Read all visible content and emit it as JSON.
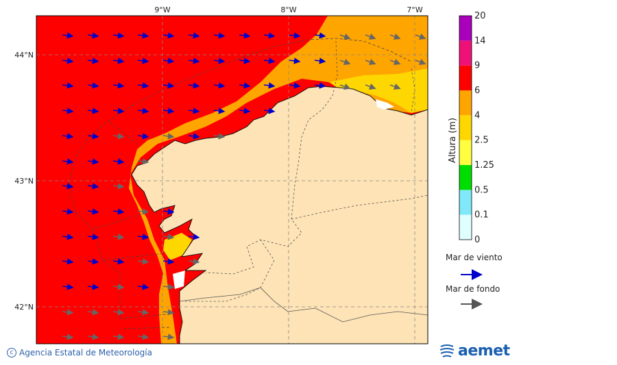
{
  "axes": {
    "lon_ticks": [
      "9°W",
      "8°W",
      "7°W"
    ],
    "lat_ticks": [
      "44°N",
      "43°N",
      "42°N"
    ]
  },
  "colorbar": {
    "title": "Altura (m)",
    "levels": [
      "0",
      "0.1",
      "0.5",
      "1.25",
      "2.5",
      "4",
      "6",
      "9",
      "14",
      "20"
    ],
    "colors": [
      "#e0ffff",
      "#80e8f8",
      "#00dd00",
      "#ffff40",
      "#ffd700",
      "#ffa500",
      "#ff0000",
      "#ee1177",
      "#aa00bb"
    ]
  },
  "legend": {
    "wind_sea_label": "Mar de viento",
    "wind_sea_color": "#0000cc",
    "swell_label": "Mar de fondo",
    "swell_color": "#555555"
  },
  "footer": {
    "credit": "Agencia Estatal de Meteorología",
    "logo_text": "aemet"
  },
  "map": {
    "land_color": "#fde3b5",
    "sea_band_colors": {
      "high": "#ff0000",
      "mid": "#ffa500",
      "low": "#ffd700"
    }
  }
}
